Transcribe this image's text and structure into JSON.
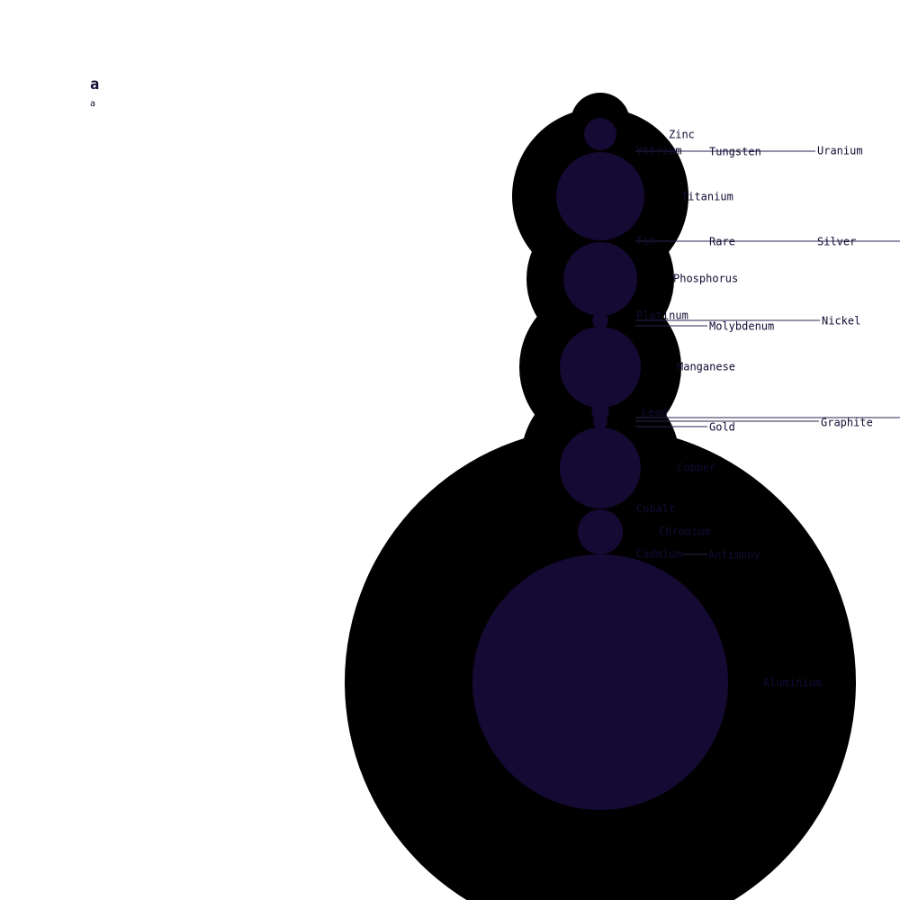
{
  "chart_data": {
    "type": "bubble",
    "title": "a",
    "subtitle": "a",
    "colors": {
      "background": "#ffffff",
      "outer_bubble": "#000000",
      "inner_bubble": "#140a33",
      "label": "#140a33",
      "leader_line": "#2a2550"
    },
    "series": [
      {
        "name": "Zinc",
        "outer": 0,
        "inner": 0.9
      },
      {
        "name": "Yttrium",
        "outer": 0,
        "inner": 0
      },
      {
        "name": "Uranium",
        "outer": 0,
        "inner": 0
      },
      {
        "name": "Tungsten",
        "outer": 0,
        "inner": 0
      },
      {
        "name": "Titanium",
        "outer": 6.4,
        "inner": 6.3
      },
      {
        "name": "Tin",
        "outer": 0,
        "inner": 0
      },
      {
        "name": "Silver",
        "outer": 0,
        "inner": 0
      },
      {
        "name": "Rare",
        "outer": 0,
        "inner": 0
      },
      {
        "name": "Phosphorus",
        "outer": 4.3,
        "inner": 4.2
      },
      {
        "name": "Platinum",
        "outer": 0,
        "inner": 0
      },
      {
        "name": "Nickel",
        "outer": 0,
        "inner": 0
      },
      {
        "name": "Molybdenum",
        "outer": 0,
        "inner": 0.05
      },
      {
        "name": "Manganese",
        "outer": 5.2,
        "inner": 5.1
      },
      {
        "name": "Lead",
        "outer": 0,
        "inner": 0.06
      },
      {
        "name": "Graphite",
        "outer": 0,
        "inner": 0
      },
      {
        "name": "Gold",
        "outer": 0,
        "inner": 0.04
      },
      {
        "name": "Copper",
        "outer": 5.0,
        "inner": 5.0
      },
      {
        "name": "Cobalt",
        "outer": 0,
        "inner": 0
      },
      {
        "name": "Chromium",
        "outer": 1.6,
        "inner": 1.6
      },
      {
        "name": "Cadmium",
        "outer": 0,
        "inner": 0
      },
      {
        "name": "Antimony",
        "outer": 0,
        "inner": 0
      },
      {
        "name": "Aluminium",
        "outer": 52,
        "inner": 52
      }
    ],
    "legend": "none",
    "grid": false
  }
}
